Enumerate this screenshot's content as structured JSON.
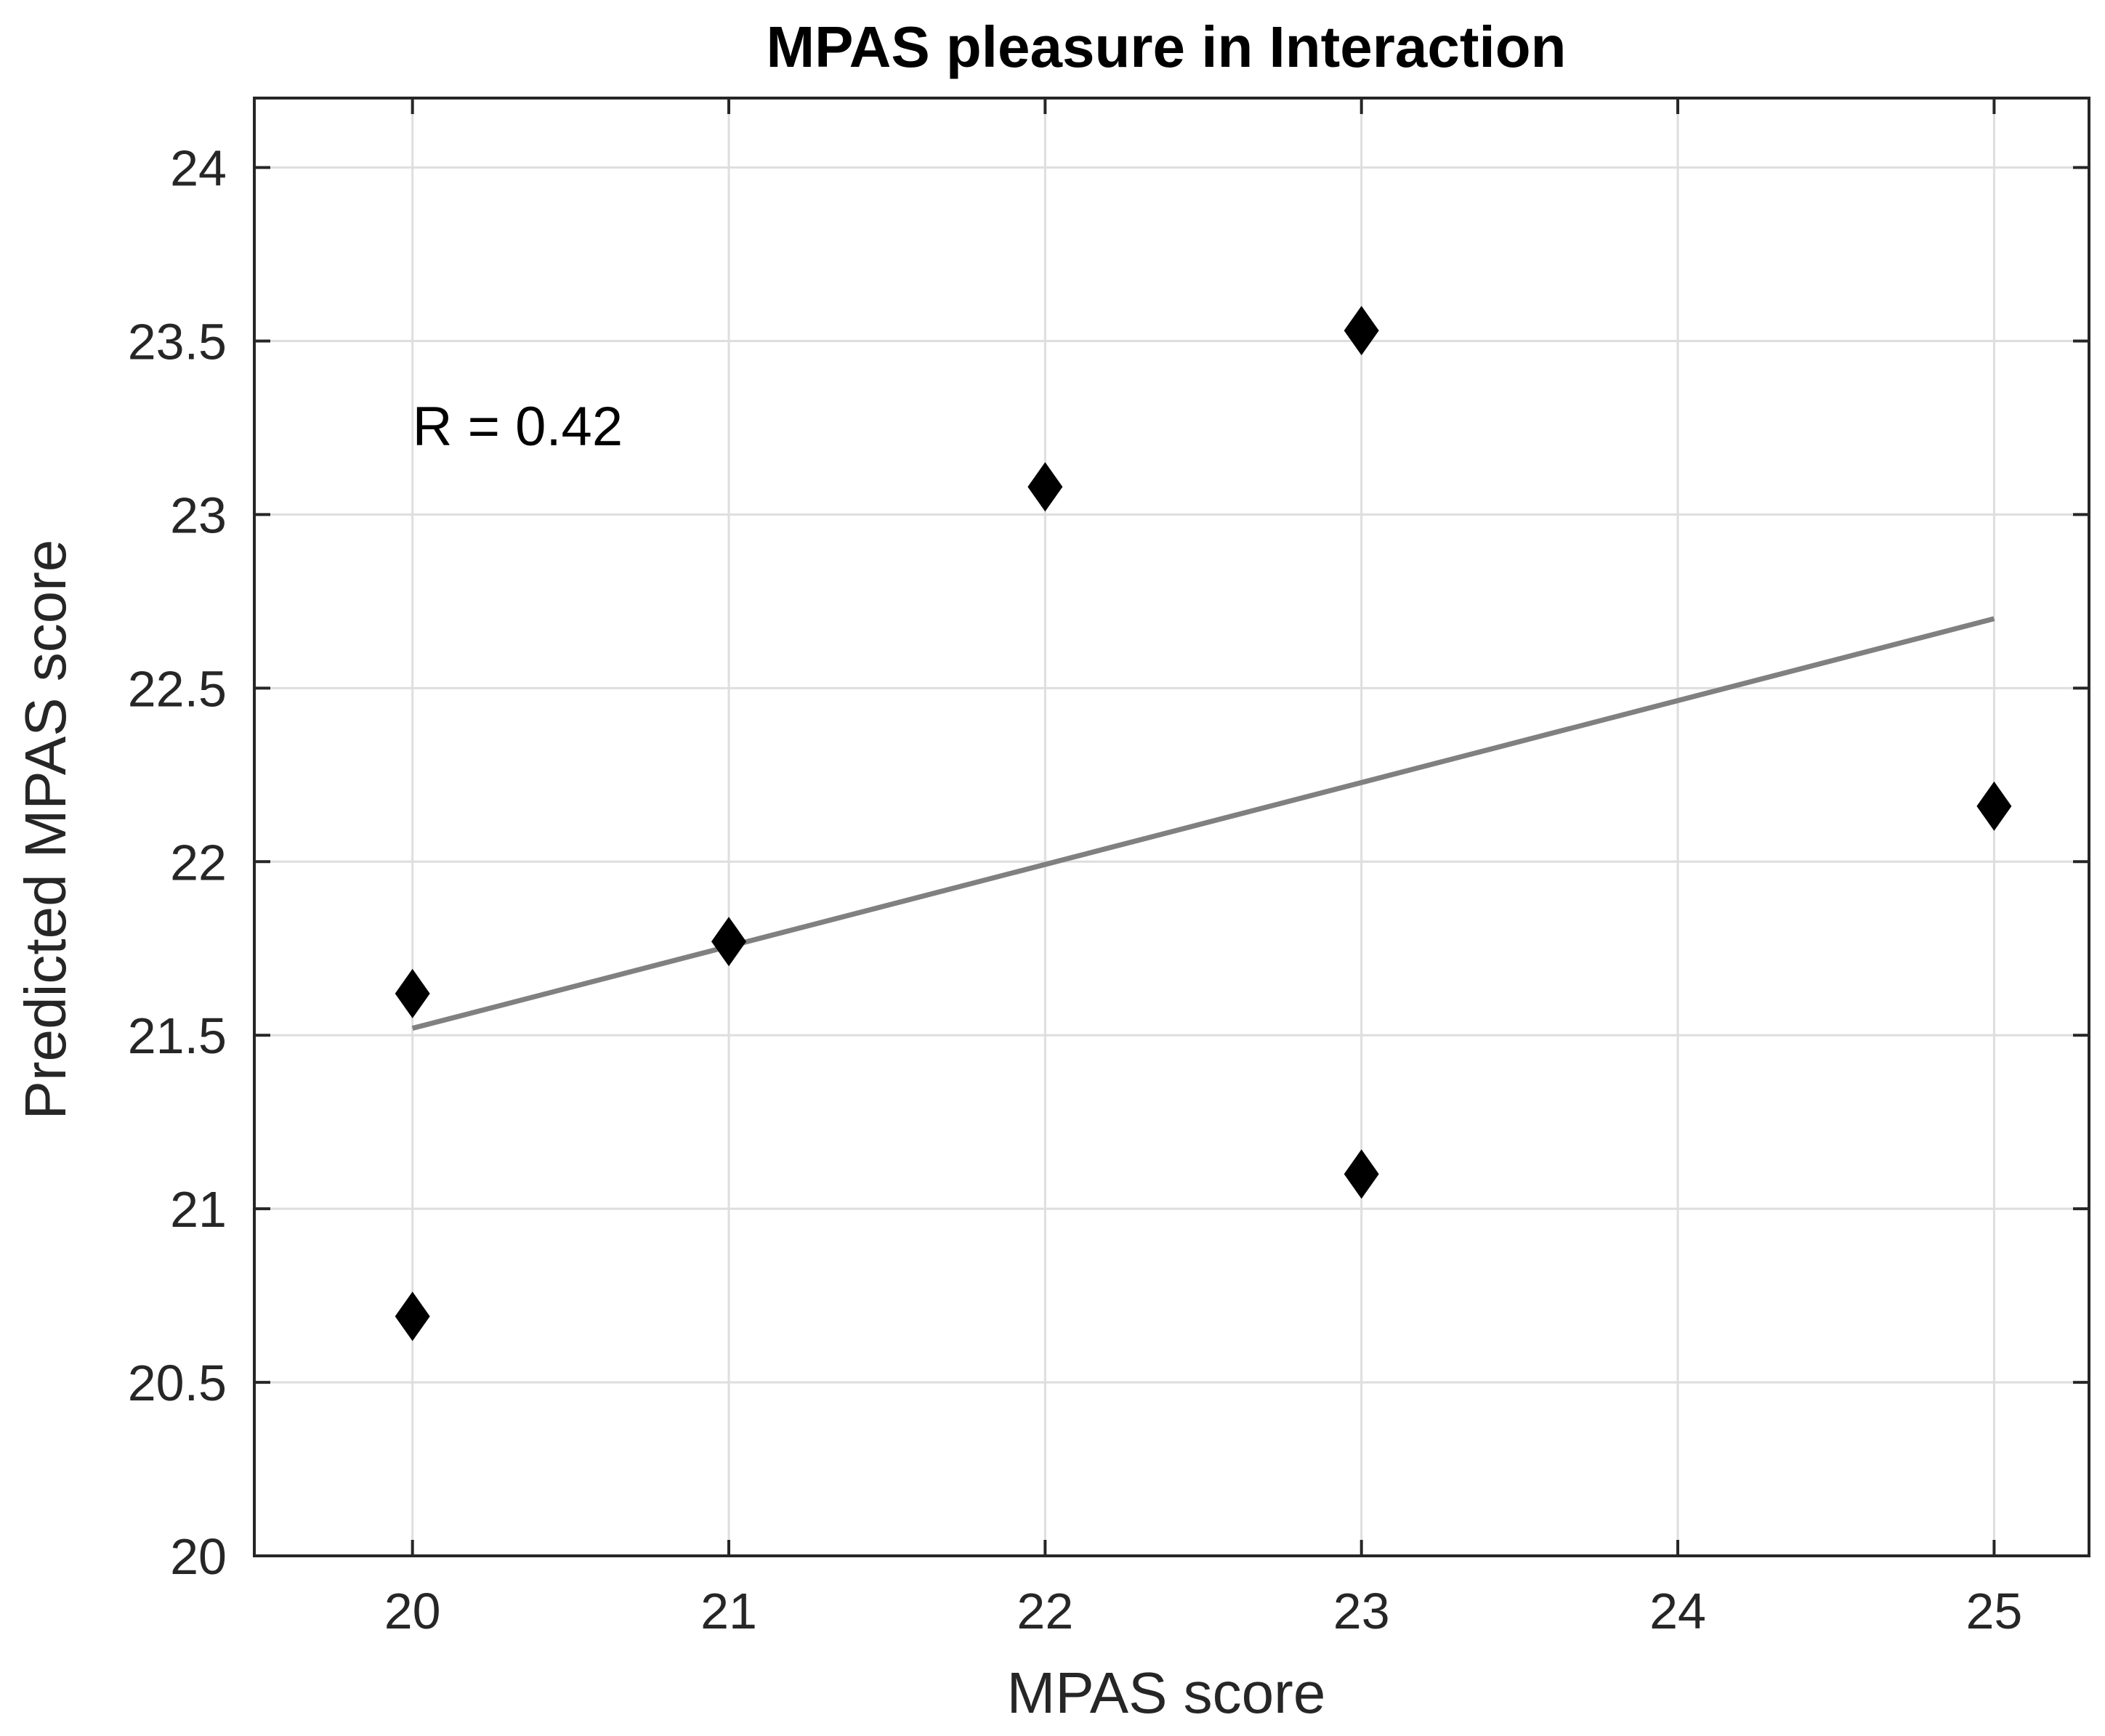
{
  "chart_data": {
    "type": "scatter",
    "title": "MPAS pleasure in Interaction",
    "xlabel": "MPAS score",
    "ylabel": "Predicted MPAS score",
    "xlim": [
      19.5,
      25.3
    ],
    "ylim": [
      20,
      24.2
    ],
    "xticks": [
      20,
      21,
      22,
      23,
      24,
      25
    ],
    "yticks": [
      20,
      20.5,
      21,
      21.5,
      22,
      22.5,
      23,
      23.5,
      24
    ],
    "x_tick_labels": [
      "20",
      "21",
      "22",
      "23",
      "24",
      "25"
    ],
    "y_tick_labels": [
      "20",
      "20.5",
      "21",
      "21.5",
      "22",
      "22.5",
      "23",
      "23.5",
      "24"
    ],
    "grid": true,
    "series": [
      {
        "marker": "diamond",
        "points": [
          {
            "x": 20,
            "y": 21.62
          },
          {
            "x": 20,
            "y": 20.69
          },
          {
            "x": 21,
            "y": 21.77
          },
          {
            "x": 22,
            "y": 23.08
          },
          {
            "x": 23,
            "y": 23.53
          },
          {
            "x": 23,
            "y": 21.1
          },
          {
            "x": 25,
            "y": 22.16
          }
        ]
      }
    ],
    "fit_line": {
      "x": [
        20,
        25
      ],
      "y": [
        21.52,
        22.7
      ]
    },
    "annotation": {
      "text": "R = 0.42",
      "x": 20,
      "y": 23.2
    },
    "colors": {
      "marker": "#000000",
      "fit_line": "#808080",
      "grid": "#dedede",
      "axes": "#262626"
    }
  }
}
